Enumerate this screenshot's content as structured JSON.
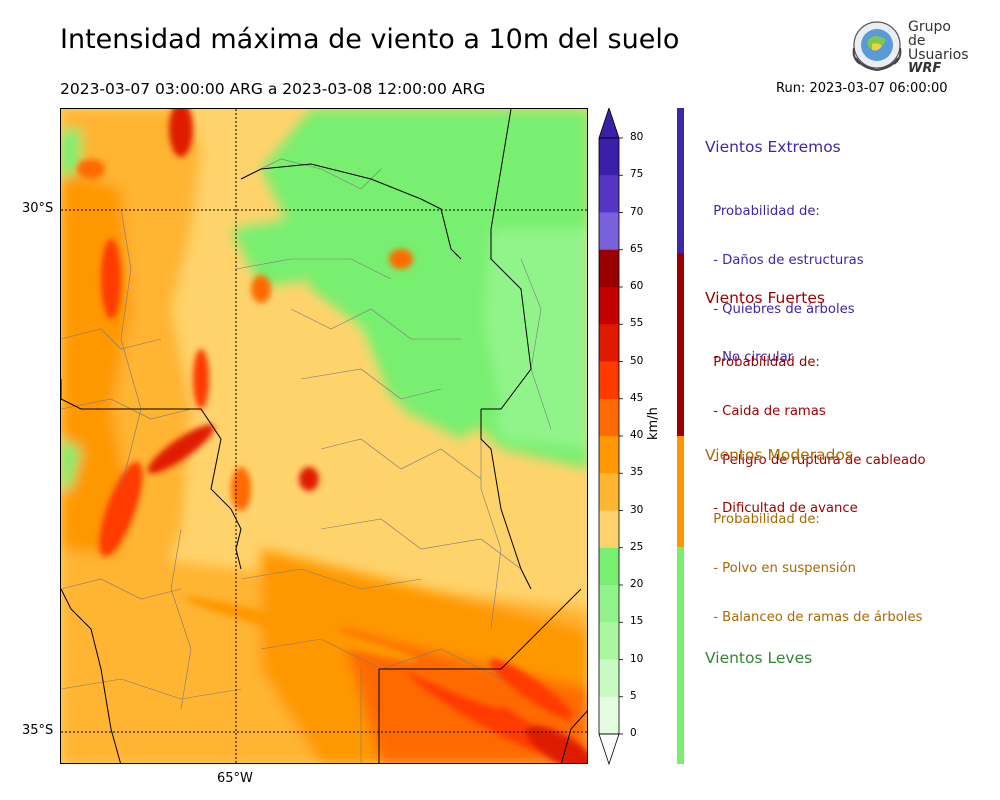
{
  "title": "Intensidad máxima de viento a 10m del suelo",
  "period": "2023-03-07 03:00:00 ARG  a  2023-03-08 12:00:00 ARG",
  "run": "Run: 2023-03-07 06:00:00",
  "logo": {
    "line1": "Grupo de",
    "line2": "Usuarios",
    "line3": "WRF"
  },
  "map": {
    "lat_labels": [
      "30°S",
      "35°S"
    ],
    "lon_labels": [
      "65°W"
    ]
  },
  "colorbar": {
    "units": "km/h",
    "ticks": [
      "80",
      "75",
      "70",
      "65",
      "60",
      "55",
      "50",
      "45",
      "40",
      "35",
      "30",
      "25",
      "20",
      "15",
      "10",
      "5",
      "0"
    ],
    "colors": [
      "#3a1fa8",
      "#5535c4",
      "#7861dc",
      "#9a0000",
      "#c20000",
      "#e01a00",
      "#ff3a00",
      "#ff6a00",
      "#ff9800",
      "#ffb432",
      "#ffd36c",
      "#78ef70",
      "#91f48a",
      "#aaf7a0",
      "#c8fac3",
      "#e4fde0"
    ]
  },
  "categories": [
    {
      "title": "Vientos Extremos",
      "color": "#3c28a8",
      "lines": [
        " Probabilidad de:",
        " - Daños de estructuras",
        " - Quiebres de árboles",
        " - No circular"
      ]
    },
    {
      "title": "Vientos Fuertes",
      "color": "#9a0000",
      "lines": [
        " Probabilidad de:",
        " - Caida de ramas",
        " - Peligro de ruptura de cableado",
        " - Dificultad de avance"
      ]
    },
    {
      "title": "Vientos Moderados",
      "color": "#a86a00",
      "lines": [
        " Probabilidad de:",
        " - Polvo en suspensión",
        " - Balanceo de ramas de árboles"
      ]
    },
    {
      "title": "Vientos Leves",
      "color": "#2e8a2e",
      "lines": []
    }
  ]
}
